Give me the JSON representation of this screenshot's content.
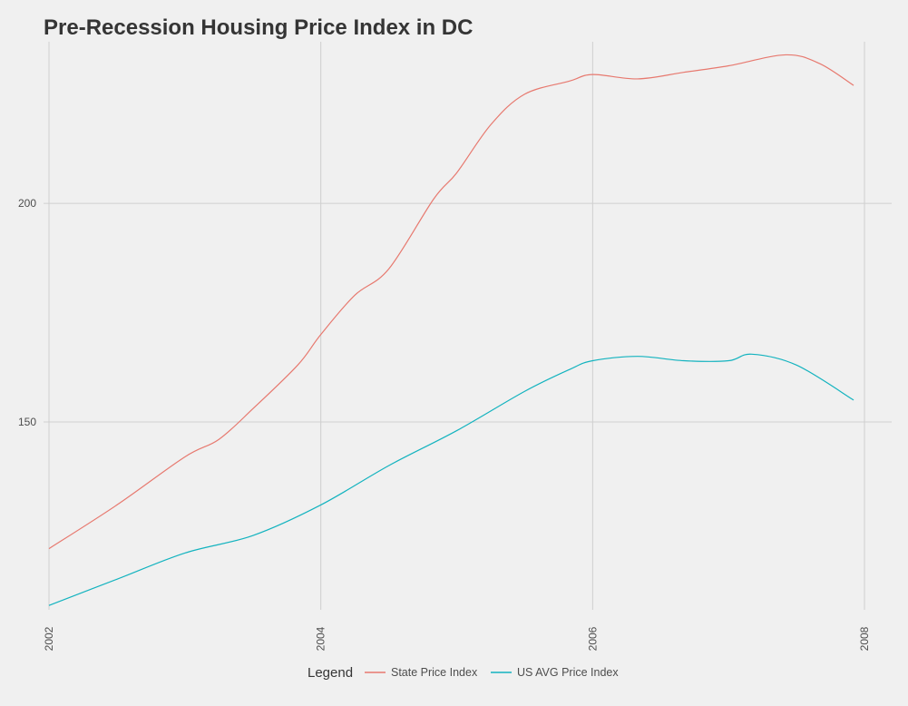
{
  "chart_data": {
    "type": "line",
    "title": "Pre-Recession Housing Price Index in DC",
    "xlabel": "",
    "ylabel": "",
    "xlim": [
      2001.96,
      2008.2
    ],
    "ylim": [
      107,
      237
    ],
    "x_ticks": [
      2002,
      2004,
      2006,
      2008
    ],
    "x_tick_labels": [
      "2002",
      "2004",
      "2006",
      "2008"
    ],
    "y_ticks": [
      150,
      200
    ],
    "y_tick_labels": [
      "150",
      "200"
    ],
    "grid": true,
    "legend": {
      "title": "Legend",
      "position": "bottom"
    },
    "series": [
      {
        "name": "State Price Index",
        "color": "#E7796F",
        "x": [
          2002.0,
          2002.5,
          2003.0,
          2003.25,
          2003.5,
          2003.83,
          2004.0,
          2004.25,
          2004.5,
          2004.83,
          2005.0,
          2005.25,
          2005.5,
          2005.83,
          2006.0,
          2006.33,
          2006.67,
          2007.0,
          2007.42,
          2007.67,
          2007.92
        ],
        "values": [
          121,
          131,
          142,
          146,
          153,
          163,
          170,
          179,
          185,
          201,
          207,
          218,
          225,
          228,
          229.5,
          228.5,
          230,
          231.5,
          234,
          232,
          227
        ]
      },
      {
        "name": "US AVG Price Index",
        "color": "#13B3BF",
        "x": [
          2002.0,
          2002.5,
          2003.0,
          2003.5,
          2004.0,
          2004.5,
          2005.0,
          2005.5,
          2005.83,
          2006.0,
          2006.33,
          2006.67,
          2007.0,
          2007.17,
          2007.5,
          2007.92
        ],
        "values": [
          108,
          114,
          120,
          124,
          131,
          140,
          148,
          157,
          162,
          164,
          165,
          164,
          164,
          165.5,
          163,
          155
        ]
      }
    ]
  }
}
